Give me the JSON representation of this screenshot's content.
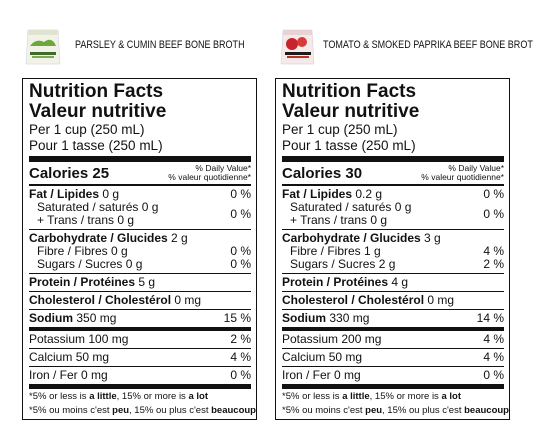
{
  "products": [
    {
      "name": "PARSLEY & CUMIN BEEF BONE BROTH",
      "label": {
        "title": "Nutrition Facts",
        "title_fr": "Valeur nutritive",
        "serving": "Per 1 cup (250 mL)",
        "serving_fr": "Pour 1 tasse (250 mL)",
        "calories": "Calories 25",
        "dv_heading": "% Daily Value*",
        "dv_heading_fr": "% valeur quotidienne*",
        "groups": [
          [
            {
              "nutrient": "Fat / Lipides",
              "amount": "0 g",
              "dv": "0 %",
              "bold": true
            },
            {
              "nutrient": "Saturated / saturés",
              "amount": "0 g",
              "nutrient2": "+ Trans / trans",
              "amount2": "0 g",
              "dv": "0 %",
              "indent": true
            }
          ],
          [
            {
              "nutrient": "Carbohydrate / Glucides",
              "amount": "2 g",
              "bold": true
            },
            {
              "nutrient": "Fibre / Fibres",
              "amount": "0 g",
              "dv": "0 %",
              "indent": true
            },
            {
              "nutrient": "Sugars / Sucres",
              "amount": "0 g",
              "dv": "0 %",
              "indent": true
            }
          ],
          [
            {
              "nutrient": "Protein / Protéines",
              "amount": "5 g",
              "bold": true
            }
          ],
          [
            {
              "nutrient": "Cholesterol / Cholestérol",
              "amount": "0 mg",
              "bold": true
            }
          ],
          [
            {
              "nutrient": "Sodium",
              "amount": "350 mg",
              "dv": "15 %",
              "bold": true
            }
          ],
          [
            {
              "nutrient": "Potassium",
              "amount": "100 mg",
              "dv": "2 %"
            }
          ],
          [
            {
              "nutrient": "Calcium",
              "amount": "50 mg",
              "dv": "4 %"
            }
          ],
          [
            {
              "nutrient": "Iron / Fer",
              "amount": "0 mg",
              "dv": "0 %"
            }
          ]
        ],
        "footnote": [
          "*5% or less is ",
          "a little",
          ", 15% or more is ",
          "a lot"
        ],
        "footnote_fr": [
          "*5% ou moins c'est ",
          "peu",
          ", 15% ou plus c'est ",
          "beaucoup"
        ]
      }
    },
    {
      "name": "TOMATO & SMOKED PAPRIKA BEEF BONE BROTH",
      "label": {
        "title": "Nutrition Facts",
        "title_fr": "Valeur nutritive",
        "serving": "Per 1 cup (250 mL)",
        "serving_fr": "Pour 1 tasse (250 mL)",
        "calories": "Calories 30",
        "dv_heading": "% Daily Value*",
        "dv_heading_fr": "% valeur quotidienne*",
        "groups": [
          [
            {
              "nutrient": "Fat / Lipides",
              "amount": "0.2 g",
              "dv": "0 %",
              "bold": true
            },
            {
              "nutrient": "Saturated / saturés",
              "amount": "0 g",
              "nutrient2": "+ Trans / trans",
              "amount2": "0 g",
              "dv": "0 %",
              "indent": true
            }
          ],
          [
            {
              "nutrient": "Carbohydrate / Glucides",
              "amount": "3 g",
              "bold": true
            },
            {
              "nutrient": "Fibre / Fibres",
              "amount": "1 g",
              "dv": "4 %",
              "indent": true
            },
            {
              "nutrient": "Sugars / Sucres",
              "amount": "2 g",
              "dv": "2 %",
              "indent": true
            }
          ],
          [
            {
              "nutrient": "Protein / Protéines",
              "amount": "4 g",
              "bold": true
            }
          ],
          [
            {
              "nutrient": "Cholesterol / Cholestérol",
              "amount": "0 mg",
              "bold": true
            }
          ],
          [
            {
              "nutrient": "Sodium",
              "amount": "330 mg",
              "dv": "14 %",
              "bold": true
            }
          ],
          [
            {
              "nutrient": "Potassium",
              "amount": "200 mg",
              "dv": "4 %"
            }
          ],
          [
            {
              "nutrient": "Calcium",
              "amount": "50 mg",
              "dv": "4 %"
            }
          ],
          [
            {
              "nutrient": "Iron / Fer",
              "amount": "0 mg",
              "dv": "0 %"
            }
          ]
        ],
        "footnote": [
          "*5% or less is ",
          "a little",
          ", 15% or more is ",
          "a lot"
        ],
        "footnote_fr": [
          "*5% ou moins c'est ",
          "peu",
          ", 15% ou plus c'est ",
          "beaucoup"
        ]
      }
    }
  ]
}
